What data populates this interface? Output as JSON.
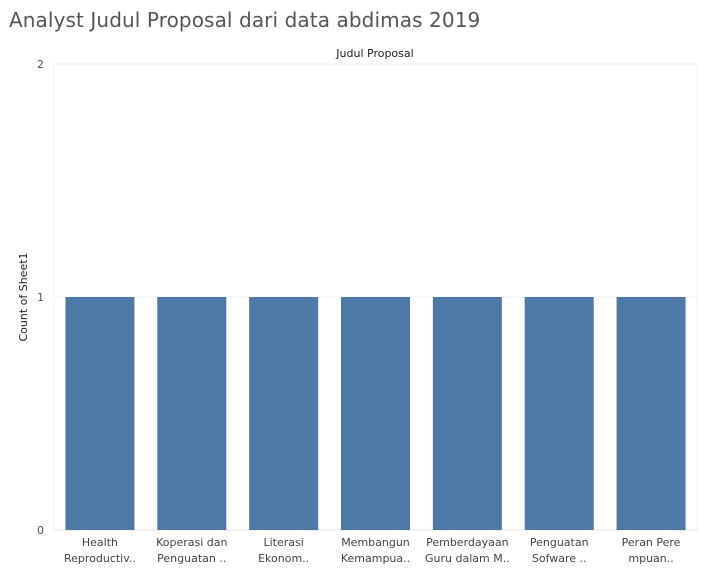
{
  "title": "Analyst Judul Proposal dari data abdimas 2019",
  "chart_data": {
    "type": "bar",
    "column_header": "Judul Proposal",
    "ylabel": "Count of Sheet1",
    "ylim": [
      0,
      2
    ],
    "yticks": [
      0,
      1,
      2
    ],
    "grid": true,
    "bar_color": "#4e79a7",
    "categories": [
      [
        "Health",
        "Reproductiv.."
      ],
      [
        "Koperasi dan",
        "Penguatan .."
      ],
      [
        "Literasi",
        "Ekonom.."
      ],
      [
        "Membangun",
        "Kemampua.."
      ],
      [
        "Pemberdayaan",
        "Guru dalam M.."
      ],
      [
        "Penguatan",
        "Sofware .."
      ],
      [
        "Peran Pere",
        "mpuan.."
      ]
    ],
    "values": [
      1,
      1,
      1,
      1,
      1,
      1,
      1
    ]
  }
}
